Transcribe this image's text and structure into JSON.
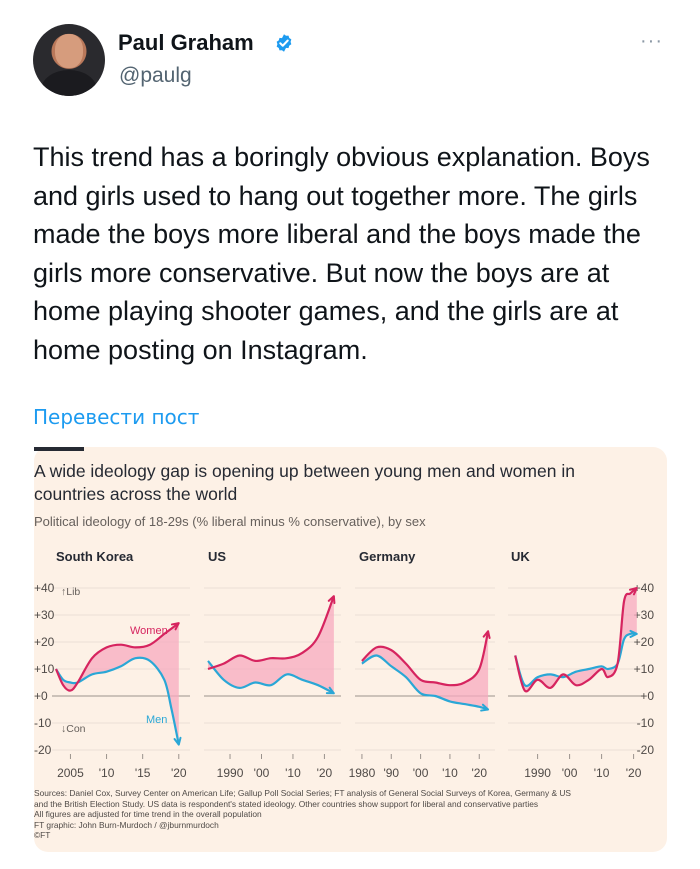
{
  "tweet": {
    "author_name": "Paul Graham",
    "handle": "@paulg",
    "more_label": "···",
    "text": "This trend has a boringly obvious explanation. Boys and girls used to hang out together more. The girls made the boys more liberal and the boys made the girls more conservative. But now the boys are at home playing shooter games, and the girls are at home posting on Instagram.",
    "translate_label": "Перевести пост",
    "icons": {
      "verified": "verified-badge-icon",
      "more": "more-options-icon"
    },
    "colors": {
      "link": "#1d9bf0",
      "verified": "#1d9bf0"
    }
  },
  "card": {
    "title": "A wide ideology gap is opening up between young men and women in countries across the world",
    "subtitle": "Political ideology of 18-29s (% liberal minus % conservative), by sex",
    "sources": [
      "Sources: Daniel Cox, Survey Center on American Life; Gallup Poll Social Series; FT analysis of General Social Surveys of Korea, Germany & US",
      "and the British Election Study. US data is respondent's stated ideology. Other countries show support for liberal and conservative parties",
      "All figures are adjusted for time trend in the overall population",
      "FT graphic: John Burn-Murdoch / @jburnmurdoch",
      "©FT"
    ]
  },
  "chart_data": {
    "type": "line",
    "title": "A wide ideology gap is opening up between young men and women in countries across the world",
    "subtitle": "Political ideology of 18-29s (% liberal minus % conservative), by sex",
    "ylim": [
      -20,
      40
    ],
    "yticks": [
      "+40",
      "+30",
      "+20",
      "+10",
      "+0",
      "-10",
      "-20"
    ],
    "annotations": {
      "lib": "↑Lib",
      "con": "↓Con"
    },
    "colors": {
      "women": "#d6245f",
      "men": "#2aa7d6",
      "gap": "#f7a9bf"
    },
    "panels": [
      {
        "name": "South Korea",
        "xticks": [
          "2005",
          "'10",
          "'15",
          "'20"
        ],
        "series": [
          {
            "name": "Women",
            "points": [
              [
                2003,
                10
              ],
              [
                2004,
                4
              ],
              [
                2005,
                2
              ],
              [
                2006,
                5
              ],
              [
                2008,
                14
              ],
              [
                2010,
                18
              ],
              [
                2012,
                19
              ],
              [
                2014,
                18
              ],
              [
                2016,
                19
              ],
              [
                2018,
                23
              ],
              [
                2020,
                27
              ]
            ]
          },
          {
            "name": "Men",
            "points": [
              [
                2003,
                10
              ],
              [
                2004,
                6
              ],
              [
                2005,
                5
              ],
              [
                2006,
                5
              ],
              [
                2008,
                8
              ],
              [
                2010,
                9
              ],
              [
                2012,
                11
              ],
              [
                2014,
                14
              ],
              [
                2016,
                13
              ],
              [
                2018,
                6
              ],
              [
                2019,
                -5
              ],
              [
                2020,
                -18
              ]
            ]
          }
        ]
      },
      {
        "name": "US",
        "xticks": [
          "1990",
          "'00",
          "'10",
          "'20"
        ],
        "series": [
          {
            "name": "Women",
            "points": [
              [
                1983,
                10
              ],
              [
                1988,
                12
              ],
              [
                1993,
                15
              ],
              [
                1998,
                13
              ],
              [
                2003,
                14
              ],
              [
                2008,
                14
              ],
              [
                2013,
                16
              ],
              [
                2018,
                22
              ],
              [
                2023,
                37
              ]
            ]
          },
          {
            "name": "Men",
            "points": [
              [
                1983,
                13
              ],
              [
                1988,
                6
              ],
              [
                1993,
                3
              ],
              [
                1998,
                5
              ],
              [
                2003,
                4
              ],
              [
                2008,
                8
              ],
              [
                2013,
                6
              ],
              [
                2018,
                4
              ],
              [
                2023,
                1
              ]
            ]
          }
        ]
      },
      {
        "name": "Germany",
        "xticks": [
          "1980",
          "'90",
          "'00",
          "'10",
          "'20"
        ],
        "series": [
          {
            "name": "Women",
            "points": [
              [
                1980,
                13
              ],
              [
                1985,
                18
              ],
              [
                1990,
                17
              ],
              [
                1995,
                12
              ],
              [
                2000,
                6
              ],
              [
                2005,
                5
              ],
              [
                2010,
                4
              ],
              [
                2015,
                5
              ],
              [
                2020,
                10
              ],
              [
                2023,
                24
              ]
            ]
          },
          {
            "name": "Men",
            "points": [
              [
                1980,
                12
              ],
              [
                1985,
                15
              ],
              [
                1990,
                11
              ],
              [
                1995,
                7
              ],
              [
                2000,
                1
              ],
              [
                2005,
                0
              ],
              [
                2010,
                -2
              ],
              [
                2015,
                -3
              ],
              [
                2020,
                -4
              ],
              [
                2023,
                -5
              ]
            ]
          }
        ]
      },
      {
        "name": "UK",
        "xticks": [
          "1990",
          "'00",
          "'10",
          "'20"
        ],
        "series": [
          {
            "name": "Women",
            "points": [
              [
                1983,
                15
              ],
              [
                1986,
                2
              ],
              [
                1990,
                6
              ],
              [
                1994,
                3
              ],
              [
                1998,
                8
              ],
              [
                2002,
                4
              ],
              [
                2006,
                6
              ],
              [
                2010,
                10
              ],
              [
                2012,
                7
              ],
              [
                2015,
                12
              ],
              [
                2017,
                35
              ],
              [
                2019,
                38
              ],
              [
                2021,
                40
              ]
            ]
          },
          {
            "name": "Men",
            "points": [
              [
                1983,
                15
              ],
              [
                1986,
                4
              ],
              [
                1990,
                7
              ],
              [
                1994,
                8
              ],
              [
                1998,
                7
              ],
              [
                2002,
                9
              ],
              [
                2006,
                10
              ],
              [
                2010,
                11
              ],
              [
                2012,
                10
              ],
              [
                2015,
                12
              ],
              [
                2017,
                21
              ],
              [
                2019,
                23
              ],
              [
                2021,
                23
              ]
            ]
          }
        ]
      }
    ]
  }
}
